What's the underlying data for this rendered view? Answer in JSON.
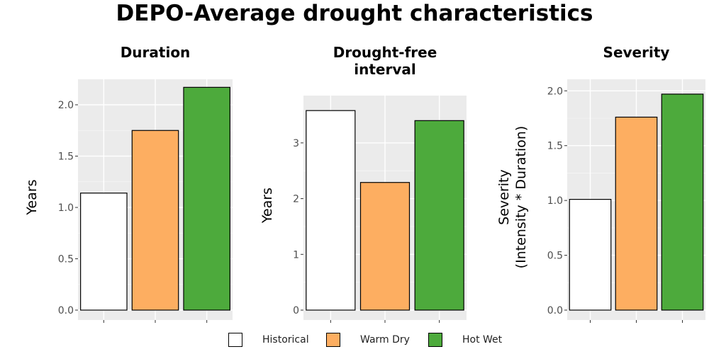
{
  "title": "DEPO-Average drought characteristics",
  "legend": [
    {
      "label": "Historical",
      "color": "#ffffff"
    },
    {
      "label": "Warm Dry",
      "color": "#fdae61"
    },
    {
      "label": "Hot Wet",
      "color": "#4daa3c"
    }
  ],
  "chart_data": [
    {
      "type": "bar",
      "title": "Duration",
      "ylabel": "Years",
      "categories": [
        "Historical",
        "Warm Dry",
        "Hot Wet"
      ],
      "values": [
        1.14,
        1.75,
        2.17
      ],
      "ylim": [
        0,
        2.2
      ],
      "yticks": [
        "0.0",
        "0.5",
        "1.0",
        "1.5",
        "2.0"
      ],
      "grid": true
    },
    {
      "type": "bar",
      "title": "Drought-free interval",
      "ylabel": "Years",
      "categories": [
        "Historical",
        "Warm Dry",
        "Hot Wet"
      ],
      "values": [
        3.58,
        2.29,
        3.4
      ],
      "ylim": [
        0,
        3.76
      ],
      "yticks": [
        "0",
        "1",
        "2",
        "3"
      ],
      "grid": true
    },
    {
      "type": "bar",
      "title": "Severity",
      "ylabel": "Severity (Intensity * Duration)",
      "categories": [
        "Historical",
        "Warm Dry",
        "Hot Wet"
      ],
      "values": [
        1.01,
        1.76,
        1.97
      ],
      "ylim": [
        0,
        2.06
      ],
      "yticks": [
        "0.0",
        "0.5",
        "1.0",
        "1.5",
        "2.0"
      ],
      "grid": true
    }
  ]
}
